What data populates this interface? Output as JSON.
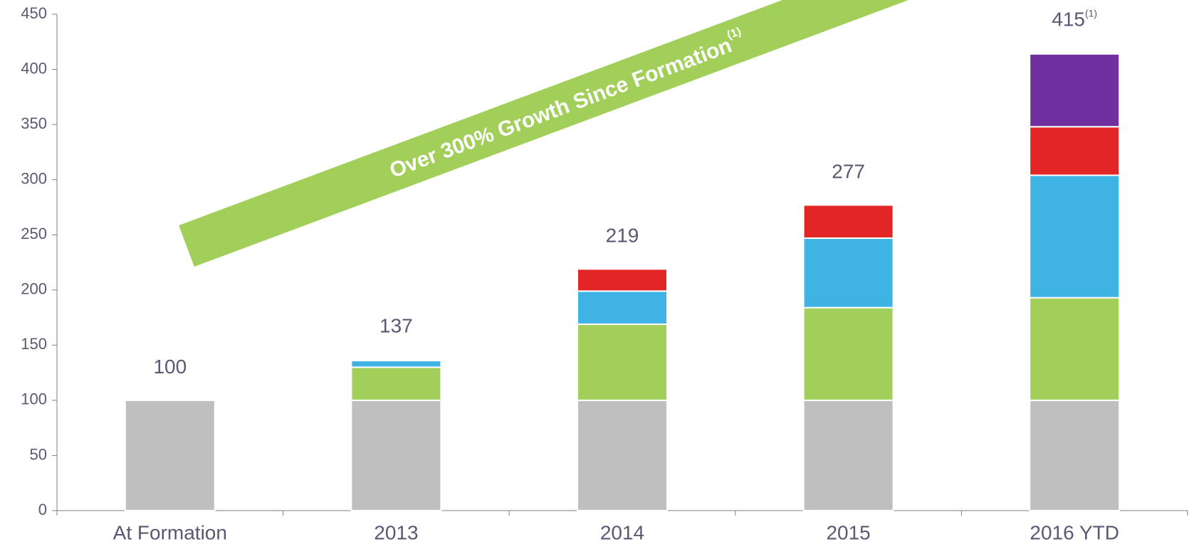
{
  "chart_data": {
    "type": "stacked_bar",
    "categories": [
      "At Formation",
      "2013",
      "2014",
      "2015",
      "2016 YTD"
    ],
    "series": [
      {
        "color": "#bfbfbf",
        "values": [
          100,
          100,
          100,
          100,
          100
        ]
      },
      {
        "color": "#a2cf5a",
        "values": [
          null,
          30,
          69,
          84,
          93
        ]
      },
      {
        "color": "#3fb4e4",
        "values": [
          null,
          6,
          30,
          63,
          111
        ]
      },
      {
        "color": "#e42526",
        "values": [
          null,
          null,
          20,
          30,
          44
        ]
      },
      {
        "color": "#7030a0",
        "values": [
          null,
          null,
          null,
          null,
          66
        ]
      }
    ],
    "totals": [
      100,
      137,
      219,
      277,
      415
    ],
    "total_notes": [
      null,
      null,
      null,
      null,
      "(1)"
    ],
    "annotation": {
      "text": "Over 300% Growth Since Formation",
      "note": "(1)"
    },
    "ylim": [
      0,
      450
    ],
    "yticks": [
      0,
      50,
      100,
      150,
      200,
      250,
      300,
      350,
      400,
      450
    ]
  }
}
